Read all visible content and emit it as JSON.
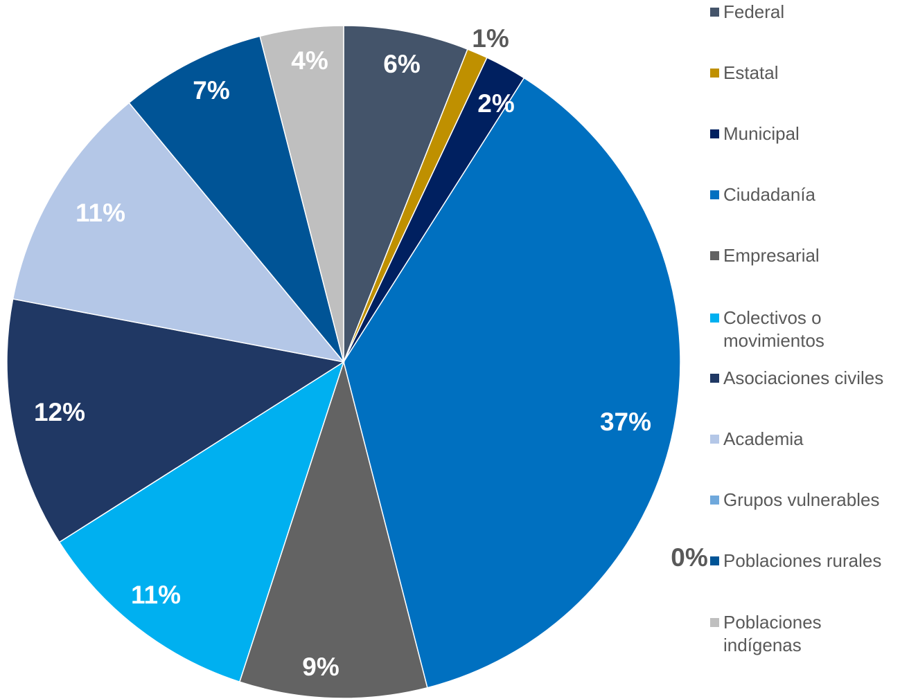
{
  "chart_data": {
    "type": "pie",
    "categories": [
      "Federal",
      "Estatal",
      "Municipal",
      "Ciudadanía",
      "Empresarial",
      "Colectivos o movimientos",
      "Asociaciones civiles",
      "Academia",
      "Grupos vulnerables",
      "Poblaciones rurales",
      "Poblaciones indígenas"
    ],
    "values": [
      6,
      1,
      2,
      37,
      9,
      11,
      12,
      11,
      0,
      7,
      4
    ],
    "value_labels": [
      "6%",
      "1%",
      "2%",
      "37%",
      "9%",
      "11%",
      "12%",
      "11%",
      "0%",
      "7%",
      "4%"
    ],
    "colors": [
      "#44546a",
      "#bf9000",
      "#002060",
      "#0070c0",
      "#636363",
      "#00b0f0",
      "#203864",
      "#b4c7e7",
      "#6fa8dc",
      "#005496",
      "#bfbfbf"
    ],
    "legend": "right"
  }
}
